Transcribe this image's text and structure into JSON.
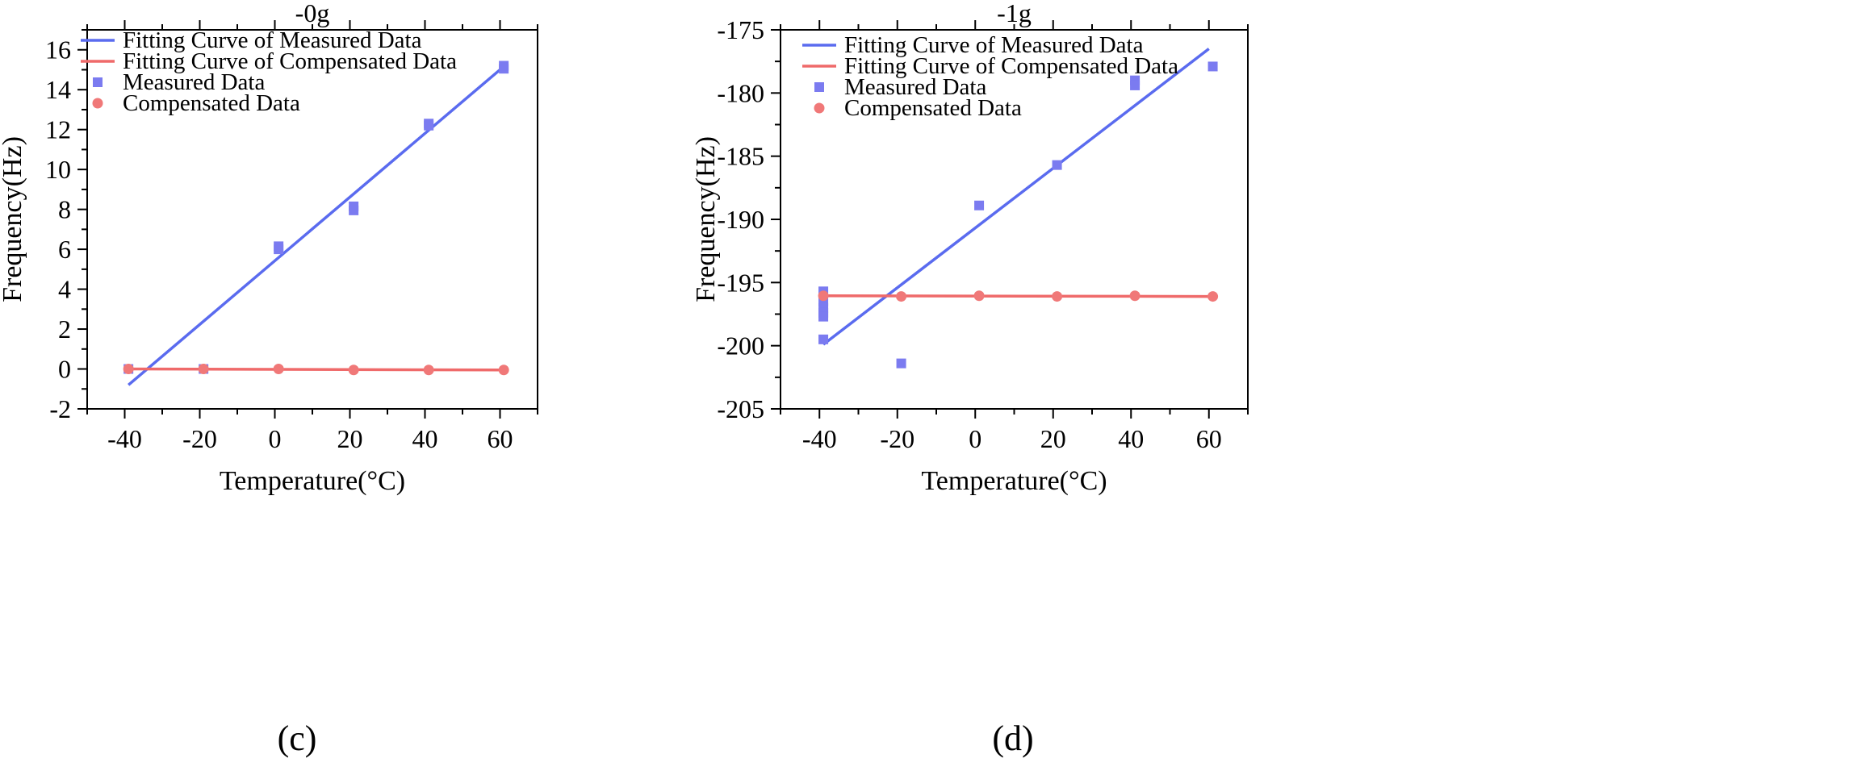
{
  "chart_data": [
    {
      "type": "scatter",
      "panel_label": "(c)",
      "title": "-0g",
      "xlabel": "Temperature(°C)",
      "ylabel": "Frequency(Hz)",
      "xlim": [
        -50,
        70
      ],
      "ylim": [
        -2,
        17
      ],
      "xticks": [
        "-40",
        "-20",
        "0",
        "20",
        "40",
        "60"
      ],
      "yticks": [
        "-2",
        "0",
        "2",
        "4",
        "6",
        "8",
        "10",
        "12",
        "14",
        "16"
      ],
      "legend_position": "top-left",
      "colors": {
        "measured": "#7b7bf0",
        "compensated": "#f07878",
        "measured_fit": "#5a6bef",
        "compensated_fit": "#ef6a6a"
      },
      "legend": [
        "Fitting Curve of Measured Data",
        "Fitting Curve of Compensated Data",
        "Measured Data",
        "Compensated Data"
      ],
      "series": [
        {
          "name": "Fitting Curve of Measured Data",
          "kind": "line",
          "x": [
            -39,
            60
          ],
          "y": [
            -0.8,
            15.0
          ]
        },
        {
          "name": "Fitting Curve of Compensated Data",
          "kind": "line",
          "x": [
            -40,
            60
          ],
          "y": [
            0.0,
            -0.05
          ]
        },
        {
          "name": "Measured Data",
          "kind": "scatter-square",
          "x": [
            -39,
            -19,
            1,
            1,
            21,
            21,
            41,
            41,
            61,
            61
          ],
          "y": [
            0.0,
            0.0,
            6.0,
            6.15,
            7.95,
            8.15,
            12.2,
            12.3,
            15.05,
            15.2
          ]
        },
        {
          "name": "Compensated Data",
          "kind": "scatter-circle",
          "x": [
            -39,
            -19,
            1,
            21,
            41,
            61
          ],
          "y": [
            0.0,
            0.0,
            0.0,
            -0.05,
            -0.05,
            -0.05
          ]
        }
      ]
    },
    {
      "type": "scatter",
      "panel_label": "(d)",
      "title": "-1g",
      "xlabel": "Temperature(°C)",
      "ylabel": "Frequency(Hz)",
      "xlim": [
        -50,
        70
      ],
      "ylim": [
        -205,
        -175
      ],
      "xticks": [
        "-40",
        "-20",
        "0",
        "20",
        "40",
        "60"
      ],
      "yticks": [
        "-205",
        "-200",
        "-195",
        "-190",
        "-185",
        "-180",
        "-175"
      ],
      "legend_position": "top-left",
      "colors": {
        "measured": "#7b7bf0",
        "compensated": "#f07878",
        "measured_fit": "#5a6bef",
        "compensated_fit": "#ef6a6a"
      },
      "legend": [
        "Fitting Curve of Measured Data",
        "Fitting Curve of Compensated Data",
        "Measured Data",
        "Compensated Data"
      ],
      "series": [
        {
          "name": "Fitting Curve of Measured Data",
          "kind": "line",
          "x": [
            -39,
            60
          ],
          "y": [
            -199.9,
            -176.5
          ]
        },
        {
          "name": "Fitting Curve of Compensated Data",
          "kind": "line",
          "x": [
            -40,
            60
          ],
          "y": [
            -196.05,
            -196.1
          ]
        },
        {
          "name": "Measured Data",
          "kind": "scatter-square",
          "x": [
            -39,
            -39,
            -39,
            -39,
            -39,
            -39,
            -19,
            1,
            21,
            41,
            41,
            61
          ],
          "y": [
            -195.7,
            -196.5,
            -197.0,
            -197.4,
            -197.7,
            -199.5,
            -201.4,
            -188.9,
            -185.7,
            -179.0,
            -179.4,
            -177.9
          ]
        },
        {
          "name": "Compensated Data",
          "kind": "scatter-circle",
          "x": [
            -39,
            -19,
            1,
            21,
            41,
            61
          ],
          "y": [
            -196.05,
            -196.1,
            -196.05,
            -196.1,
            -196.05,
            -196.1
          ]
        }
      ]
    }
  ]
}
